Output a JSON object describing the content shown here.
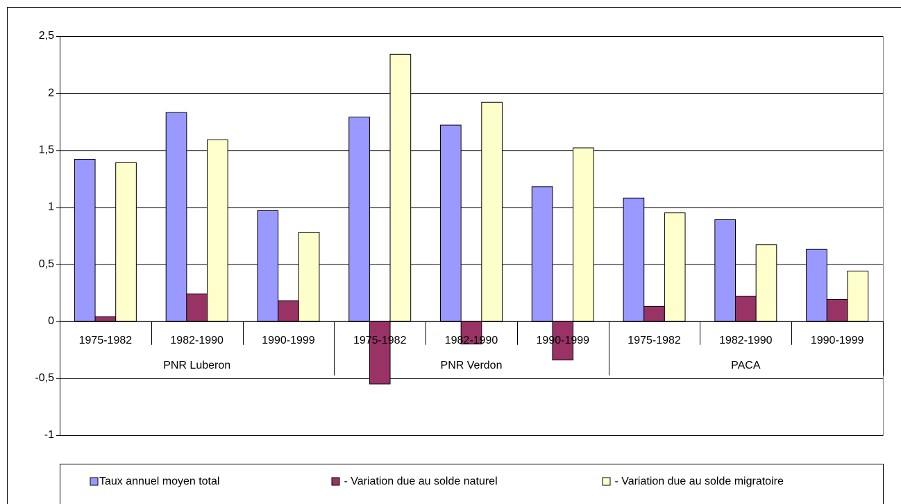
{
  "chart_data": {
    "type": "bar",
    "categories": [
      "1975-1982",
      "1982-1990",
      "1990-1999",
      "1975-1982",
      "1982-1990",
      "1990-1999",
      "1975-1982",
      "1982-1990",
      "1990-1999"
    ],
    "groups": [
      "PNR Luberon",
      "PNR Verdon",
      "PACA"
    ],
    "series": [
      {
        "name": "Taux annuel moyen total",
        "color": "#9999ff",
        "values": [
          1.42,
          1.83,
          0.97,
          1.79,
          1.72,
          1.18,
          1.08,
          0.89,
          0.63
        ]
      },
      {
        "name": " - Variation due au solde naturel",
        "color": "#993366",
        "values": [
          0.04,
          0.24,
          0.18,
          -0.55,
          -0.2,
          -0.34,
          0.13,
          0.22,
          0.19
        ]
      },
      {
        "name": " - Variation due au solde migratoire",
        "color": "#ffffcc",
        "values": [
          1.39,
          1.59,
          0.78,
          2.34,
          1.92,
          1.52,
          0.95,
          0.67,
          0.44
        ]
      }
    ],
    "ylim": [
      -1,
      2.5
    ],
    "yticks": [
      -1,
      {
        "value": -0.5,
        "label": "-0,5"
      },
      0,
      {
        "value": 0.5,
        "label": "0,5"
      },
      1,
      {
        "value": 1.5,
        "label": "1,5"
      },
      2,
      {
        "value": 2.5,
        "label": "2,5"
      }
    ],
    "grid": true,
    "legend": "bottom"
  }
}
